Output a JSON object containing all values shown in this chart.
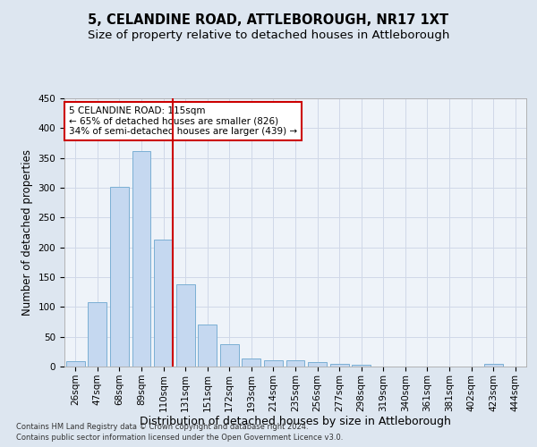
{
  "title": "5, CELANDINE ROAD, ATTLEBOROUGH, NR17 1XT",
  "subtitle": "Size of property relative to detached houses in Attleborough",
  "xlabel": "Distribution of detached houses by size in Attleborough",
  "ylabel": "Number of detached properties",
  "footnote1": "Contains HM Land Registry data © Crown copyright and database right 2024.",
  "footnote2": "Contains public sector information licensed under the Open Government Licence v3.0.",
  "annotation_line1": "5 CELANDINE ROAD: 115sqm",
  "annotation_line2": "← 65% of detached houses are smaller (826)",
  "annotation_line3": "34% of semi-detached houses are larger (439) →",
  "bar_categories": [
    "26sqm",
    "47sqm",
    "68sqm",
    "89sqm",
    "110sqm",
    "131sqm",
    "151sqm",
    "172sqm",
    "193sqm",
    "214sqm",
    "235sqm",
    "256sqm",
    "277sqm",
    "298sqm",
    "319sqm",
    "340sqm",
    "361sqm",
    "381sqm",
    "402sqm",
    "423sqm",
    "444sqm"
  ],
  "bar_values": [
    9,
    108,
    302,
    362,
    213,
    138,
    70,
    38,
    13,
    11,
    10,
    7,
    5,
    3,
    0,
    0,
    0,
    0,
    0,
    4,
    0
  ],
  "bar_color": "#c5d8f0",
  "bar_edge_color": "#7bafd4",
  "vline_color": "#cc0000",
  "vline_x_index": 4,
  "grid_color": "#d0d8e8",
  "background_color": "#dde6f0",
  "axes_background": "#eef3f9",
  "ylim": [
    0,
    450
  ],
  "yticks": [
    0,
    50,
    100,
    150,
    200,
    250,
    300,
    350,
    400,
    450
  ],
  "annotation_box_facecolor": "#ffffff",
  "annotation_box_edgecolor": "#cc0000",
  "title_fontsize": 10.5,
  "subtitle_fontsize": 9.5,
  "xlabel_fontsize": 9,
  "ylabel_fontsize": 8.5,
  "tick_fontsize": 7.5,
  "annotation_fontsize": 7.5,
  "footnote_fontsize": 6
}
